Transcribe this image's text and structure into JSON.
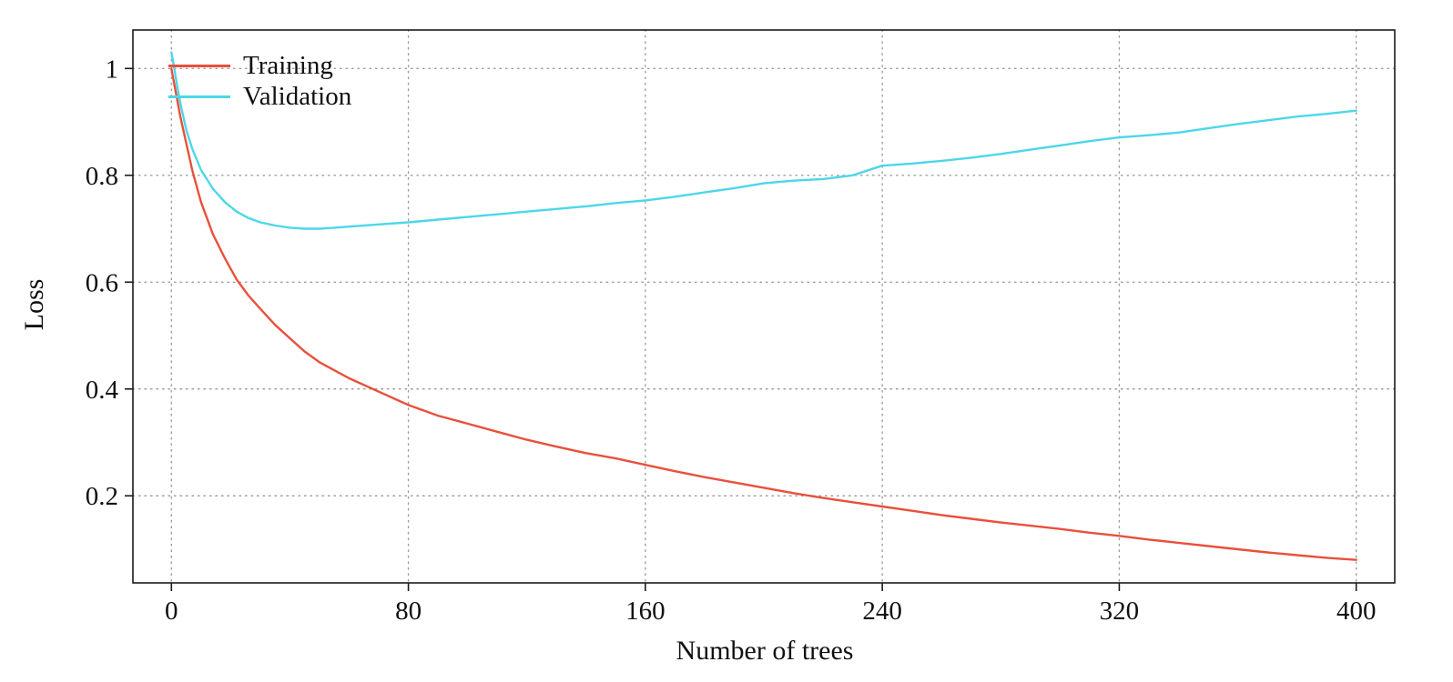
{
  "chart_data": {
    "type": "line",
    "title": "",
    "xlabel": "Number of trees",
    "ylabel": "Loss",
    "xlim": [
      -13,
      413
    ],
    "ylim": [
      0.037,
      1.072
    ],
    "x_ticks": [
      0,
      80,
      160,
      240,
      320,
      400
    ],
    "x_tick_labels": [
      "0",
      "80",
      "160",
      "240",
      "320",
      "400"
    ],
    "y_ticks": [
      0.2,
      0.4,
      0.6,
      0.8,
      1
    ],
    "y_tick_labels": [
      "0.2",
      "0.4",
      "0.6",
      "0.8",
      "1"
    ],
    "grid": "dotted",
    "legend_position": "top-left",
    "axis_color": "#1a1a1a",
    "grid_color": "#9e9e9e",
    "series": [
      {
        "name": "Training",
        "color": "#e8503c",
        "x": [
          0,
          1,
          2,
          3,
          5,
          7,
          10,
          14,
          18,
          22,
          26,
          30,
          35,
          40,
          45,
          50,
          55,
          60,
          70,
          80,
          90,
          100,
          110,
          120,
          130,
          140,
          150,
          160,
          170,
          180,
          190,
          200,
          210,
          220,
          230,
          240,
          250,
          260,
          270,
          280,
          290,
          300,
          310,
          320,
          330,
          340,
          350,
          360,
          370,
          380,
          390,
          400
        ],
        "y": [
          1.0,
          0.97,
          0.94,
          0.91,
          0.86,
          0.81,
          0.75,
          0.69,
          0.645,
          0.605,
          0.575,
          0.55,
          0.52,
          0.495,
          0.47,
          0.45,
          0.435,
          0.42,
          0.395,
          0.37,
          0.35,
          0.335,
          0.32,
          0.305,
          0.292,
          0.28,
          0.27,
          0.258,
          0.246,
          0.235,
          0.225,
          0.215,
          0.205,
          0.196,
          0.188,
          0.18,
          0.172,
          0.164,
          0.157,
          0.15,
          0.144,
          0.138,
          0.131,
          0.125,
          0.118,
          0.112,
          0.106,
          0.1,
          0.094,
          0.089,
          0.084,
          0.08
        ]
      },
      {
        "name": "Validation",
        "color": "#4cd7e8",
        "x": [
          0,
          1,
          2,
          3,
          5,
          7,
          10,
          14,
          18,
          22,
          26,
          30,
          35,
          40,
          45,
          50,
          55,
          60,
          70,
          80,
          90,
          100,
          110,
          120,
          130,
          140,
          150,
          160,
          170,
          180,
          190,
          200,
          210,
          220,
          230,
          240,
          250,
          260,
          270,
          280,
          290,
          300,
          310,
          320,
          330,
          340,
          350,
          360,
          370,
          380,
          390,
          400
        ],
        "y": [
          1.03,
          1.0,
          0.965,
          0.935,
          0.885,
          0.85,
          0.81,
          0.775,
          0.75,
          0.732,
          0.72,
          0.712,
          0.706,
          0.702,
          0.7,
          0.7,
          0.702,
          0.704,
          0.708,
          0.712,
          0.717,
          0.722,
          0.727,
          0.732,
          0.737,
          0.742,
          0.748,
          0.753,
          0.76,
          0.768,
          0.776,
          0.785,
          0.79,
          0.793,
          0.8,
          0.818,
          0.822,
          0.827,
          0.833,
          0.84,
          0.848,
          0.856,
          0.864,
          0.871,
          0.875,
          0.88,
          0.888,
          0.896,
          0.903,
          0.91,
          0.915,
          0.921
        ]
      }
    ]
  }
}
